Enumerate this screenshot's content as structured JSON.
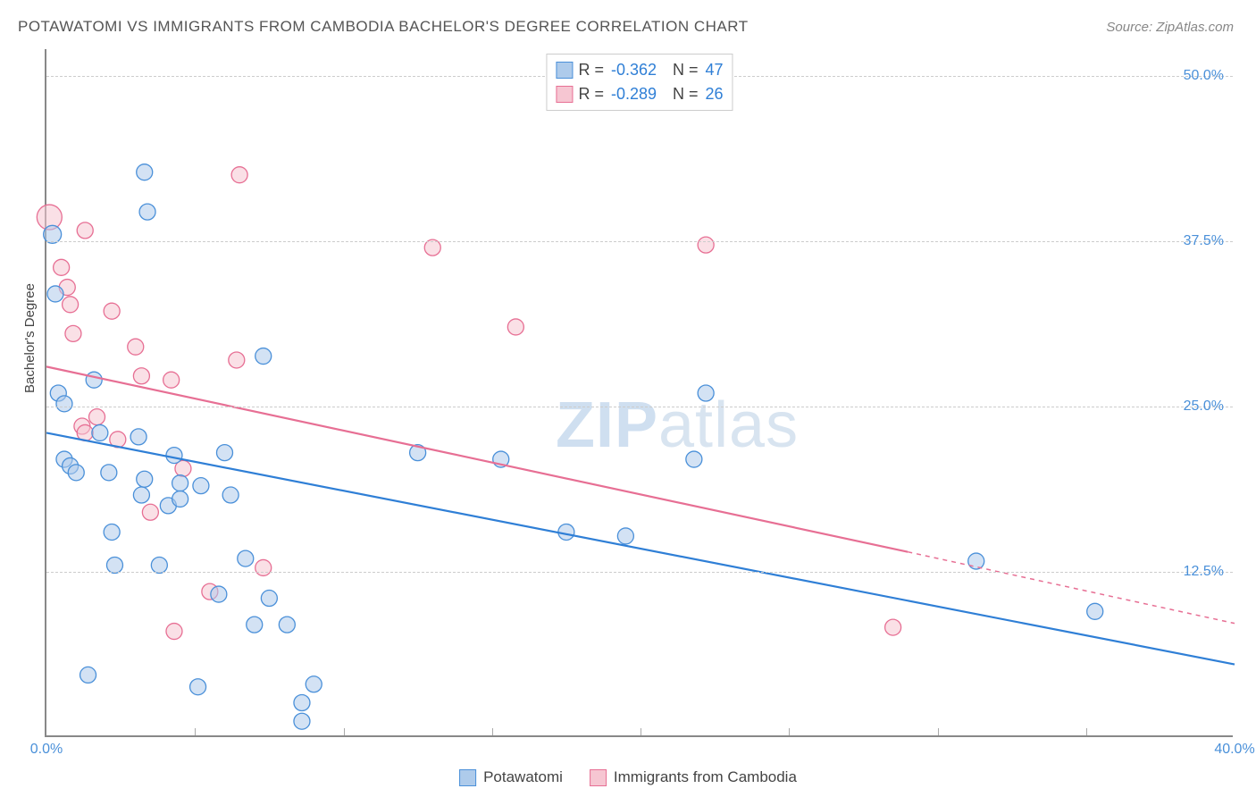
{
  "title": "POTAWATOMI VS IMMIGRANTS FROM CAMBODIA BACHELOR'S DEGREE CORRELATION CHART",
  "source_prefix": "Source: ",
  "source_name": "ZipAtlas.com",
  "ylabel": "Bachelor's Degree",
  "watermark_bold": "ZIP",
  "watermark_light": "atlas",
  "colors": {
    "series_a_fill": "#aecbeb",
    "series_a_stroke": "#4a90d9",
    "series_b_fill": "#f6c6d2",
    "series_b_stroke": "#e76f94",
    "trend_a": "#2f7fd6",
    "trend_b": "#e76f94",
    "axis": "#888888",
    "grid": "#cccccc",
    "tick_text": "#4a90d9",
    "stat_val": "#2f7fd6"
  },
  "chart": {
    "type": "scatter",
    "xlim": [
      0,
      40
    ],
    "ylim": [
      0,
      52
    ],
    "yticks": [
      {
        "v": 12.5,
        "label": "12.5%"
      },
      {
        "v": 25.0,
        "label": "25.0%"
      },
      {
        "v": 37.5,
        "label": "37.5%"
      },
      {
        "v": 50.0,
        "label": "50.0%"
      }
    ],
    "xticks_minor": [
      5,
      10,
      15,
      20,
      25,
      30,
      35
    ],
    "xticks_label": [
      {
        "v": 0,
        "label": "0.0%"
      },
      {
        "v": 40,
        "label": "40.0%"
      }
    ],
    "marker_r": 9,
    "marker_opacity": 0.55,
    "line_width": 2.2
  },
  "stats": [
    {
      "r_label": "R =",
      "r": "-0.362",
      "n_label": "N =",
      "n": "47"
    },
    {
      "r_label": "R =",
      "r": "-0.289",
      "n_label": "N =",
      "n": "26"
    }
  ],
  "legend": [
    {
      "label": "Potawatomi"
    },
    {
      "label": "Immigrants from Cambodia"
    }
  ],
  "series_a": {
    "name": "Potawatomi",
    "trend": {
      "x1": 0,
      "y1": 23,
      "x2": 40,
      "y2": 5.5
    },
    "points": [
      {
        "x": 0.2,
        "y": 38,
        "r": 10
      },
      {
        "x": 0.3,
        "y": 33.5
      },
      {
        "x": 0.4,
        "y": 26
      },
      {
        "x": 0.6,
        "y": 25.2
      },
      {
        "x": 0.6,
        "y": 21
      },
      {
        "x": 0.8,
        "y": 20.5
      },
      {
        "x": 1.0,
        "y": 20
      },
      {
        "x": 1.4,
        "y": 4.7
      },
      {
        "x": 1.6,
        "y": 27
      },
      {
        "x": 1.8,
        "y": 23
      },
      {
        "x": 2.1,
        "y": 20
      },
      {
        "x": 2.2,
        "y": 15.5
      },
      {
        "x": 2.3,
        "y": 13
      },
      {
        "x": 3.1,
        "y": 22.7
      },
      {
        "x": 3.2,
        "y": 18.3
      },
      {
        "x": 3.3,
        "y": 19.5
      },
      {
        "x": 3.3,
        "y": 42.7
      },
      {
        "x": 3.4,
        "y": 39.7
      },
      {
        "x": 3.8,
        "y": 13
      },
      {
        "x": 4.1,
        "y": 17.5
      },
      {
        "x": 4.3,
        "y": 21.3
      },
      {
        "x": 4.5,
        "y": 19.2
      },
      {
        "x": 4.5,
        "y": 18
      },
      {
        "x": 5.1,
        "y": 3.8
      },
      {
        "x": 5.2,
        "y": 19
      },
      {
        "x": 5.8,
        "y": 10.8
      },
      {
        "x": 6.0,
        "y": 21.5
      },
      {
        "x": 6.2,
        "y": 18.3
      },
      {
        "x": 6.7,
        "y": 13.5
      },
      {
        "x": 7.0,
        "y": 8.5
      },
      {
        "x": 7.3,
        "y": 28.8
      },
      {
        "x": 7.5,
        "y": 10.5
      },
      {
        "x": 8.1,
        "y": 8.5
      },
      {
        "x": 8.6,
        "y": 1.2
      },
      {
        "x": 8.6,
        "y": 2.6
      },
      {
        "x": 9.0,
        "y": 4.0
      },
      {
        "x": 12.5,
        "y": 21.5
      },
      {
        "x": 15.3,
        "y": 21
      },
      {
        "x": 17.5,
        "y": 15.5
      },
      {
        "x": 19.5,
        "y": 15.2
      },
      {
        "x": 21.8,
        "y": 21
      },
      {
        "x": 22.2,
        "y": 26
      },
      {
        "x": 31.3,
        "y": 13.3
      },
      {
        "x": 35.3,
        "y": 9.5
      }
    ]
  },
  "series_b": {
    "name": "Immigrants from Cambodia",
    "trend_solid": {
      "x1": 0,
      "y1": 28,
      "x2": 29,
      "y2": 14
    },
    "trend_dash": {
      "x1": 29,
      "y1": 14,
      "x2": 40,
      "y2": 8.6
    },
    "points": [
      {
        "x": 0.1,
        "y": 39.3,
        "r": 14
      },
      {
        "x": 0.5,
        "y": 35.5
      },
      {
        "x": 0.7,
        "y": 34
      },
      {
        "x": 0.8,
        "y": 32.7
      },
      {
        "x": 0.9,
        "y": 30.5
      },
      {
        "x": 1.2,
        "y": 23.5
      },
      {
        "x": 1.3,
        "y": 23
      },
      {
        "x": 1.3,
        "y": 38.3
      },
      {
        "x": 1.7,
        "y": 24.2
      },
      {
        "x": 2.2,
        "y": 32.2
      },
      {
        "x": 2.4,
        "y": 22.5
      },
      {
        "x": 3.0,
        "y": 29.5
      },
      {
        "x": 3.2,
        "y": 27.3
      },
      {
        "x": 3.5,
        "y": 17
      },
      {
        "x": 4.2,
        "y": 27
      },
      {
        "x": 4.3,
        "y": 8
      },
      {
        "x": 4.6,
        "y": 20.3
      },
      {
        "x": 5.5,
        "y": 11
      },
      {
        "x": 6.4,
        "y": 28.5
      },
      {
        "x": 6.5,
        "y": 42.5
      },
      {
        "x": 7.3,
        "y": 12.8
      },
      {
        "x": 13.0,
        "y": 37
      },
      {
        "x": 15.8,
        "y": 31
      },
      {
        "x": 22.2,
        "y": 37.2
      },
      {
        "x": 28.5,
        "y": 8.3
      }
    ]
  }
}
